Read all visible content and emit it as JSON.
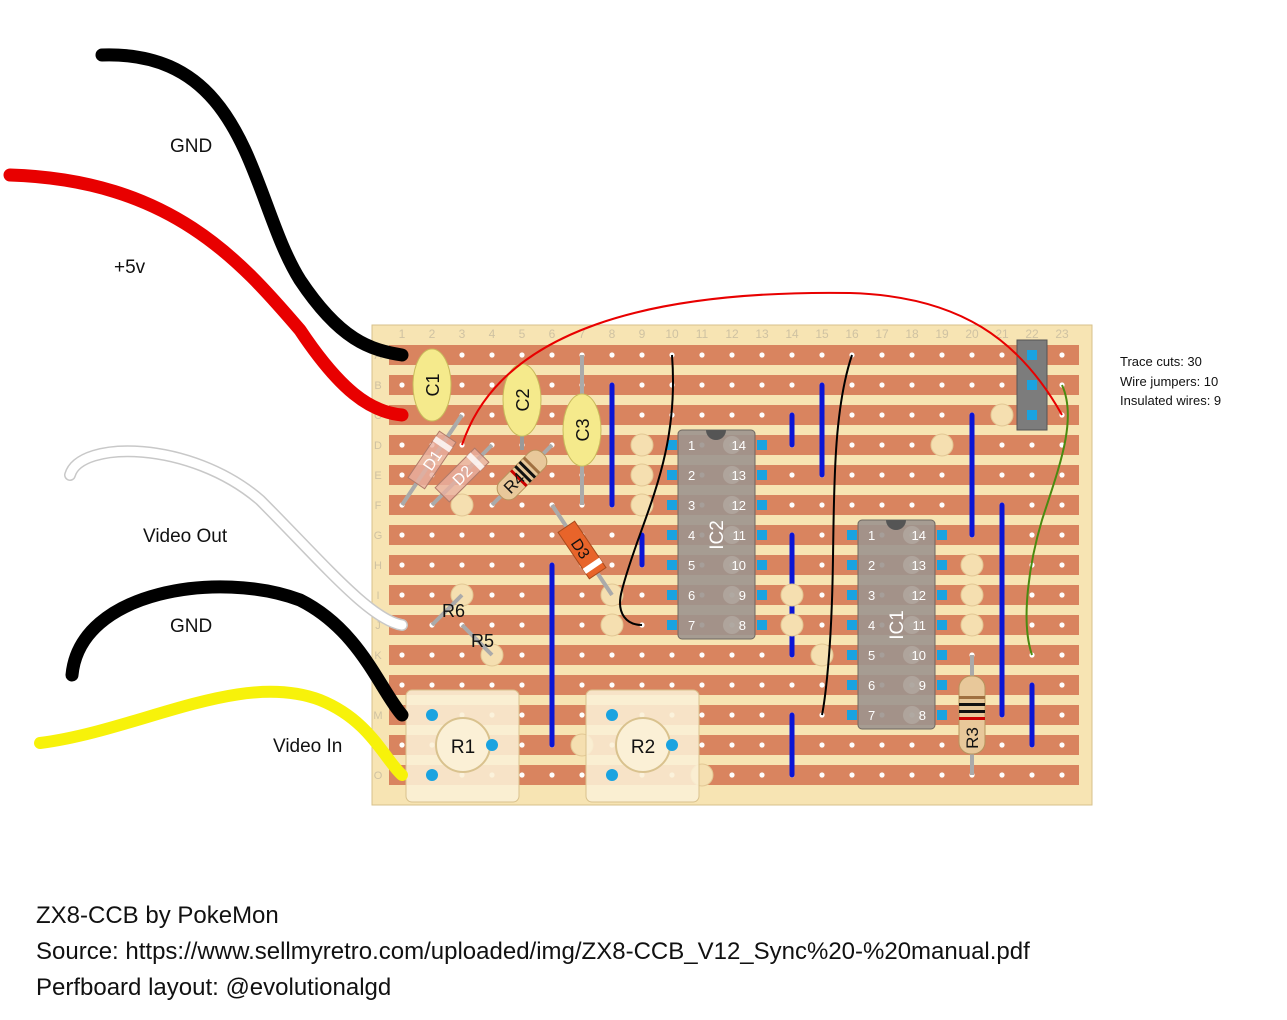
{
  "columns": [
    "1",
    "2",
    "3",
    "4",
    "5",
    "6",
    "7",
    "8",
    "9",
    "10",
    "11",
    "12",
    "13",
    "14",
    "15",
    "16",
    "17",
    "18",
    "19",
    "20",
    "21",
    "22",
    "23"
  ],
  "rows": [
    "A",
    "B",
    "C",
    "D",
    "E",
    "F",
    "G",
    "H",
    "I",
    "J",
    "K",
    "L",
    "M",
    "N",
    "O"
  ],
  "wire_labels": {
    "gnd_top": "GND",
    "plus5v": "+5v",
    "video_out": "Video Out",
    "gnd_bottom": "GND",
    "video_in": "Video In"
  },
  "components": {
    "c1": "C1",
    "c2": "C2",
    "c3": "C3",
    "d1": "D1",
    "d2": "D2",
    "d3": "D3",
    "r1": "R1",
    "r2": "R2",
    "r3": "R3",
    "r4": "R4",
    "r5": "R5",
    "r6": "R6",
    "ic1": "IC1",
    "ic2": "IC2"
  },
  "ic_pins": [
    "1",
    "2",
    "3",
    "4",
    "5",
    "6",
    "7",
    "8",
    "9",
    "10",
    "11",
    "12",
    "13",
    "14"
  ],
  "stats": {
    "trace_cuts": "Trace cuts: 30",
    "wire_jumpers": "Wire jumpers: 10",
    "insulated_wires": "Insulated wires: 9"
  },
  "footer": {
    "title": "ZX8-CCB by PokeMon",
    "source": "Source: https://www.sellmyretro.com/uploaded/img/ZX8-CCB_V12_Sync%20-%20manual.pdf",
    "layout": "Perfboard layout: @evolutionalgd"
  },
  "colors": {
    "board": "#f7e4b3",
    "strip": "#d9845f",
    "hole": "#ffffff",
    "jumper": "#0a14d6",
    "ic_body": "#9c948e",
    "pad": "#19a3e0",
    "cap": "#f5ea8c",
    "resistor": "#e8c89a",
    "wire_black": "#000000",
    "wire_red": "#e80000",
    "wire_white": "#ffffff",
    "wire_yellow": "#f7f20a",
    "wire_green": "#4a8a10"
  }
}
